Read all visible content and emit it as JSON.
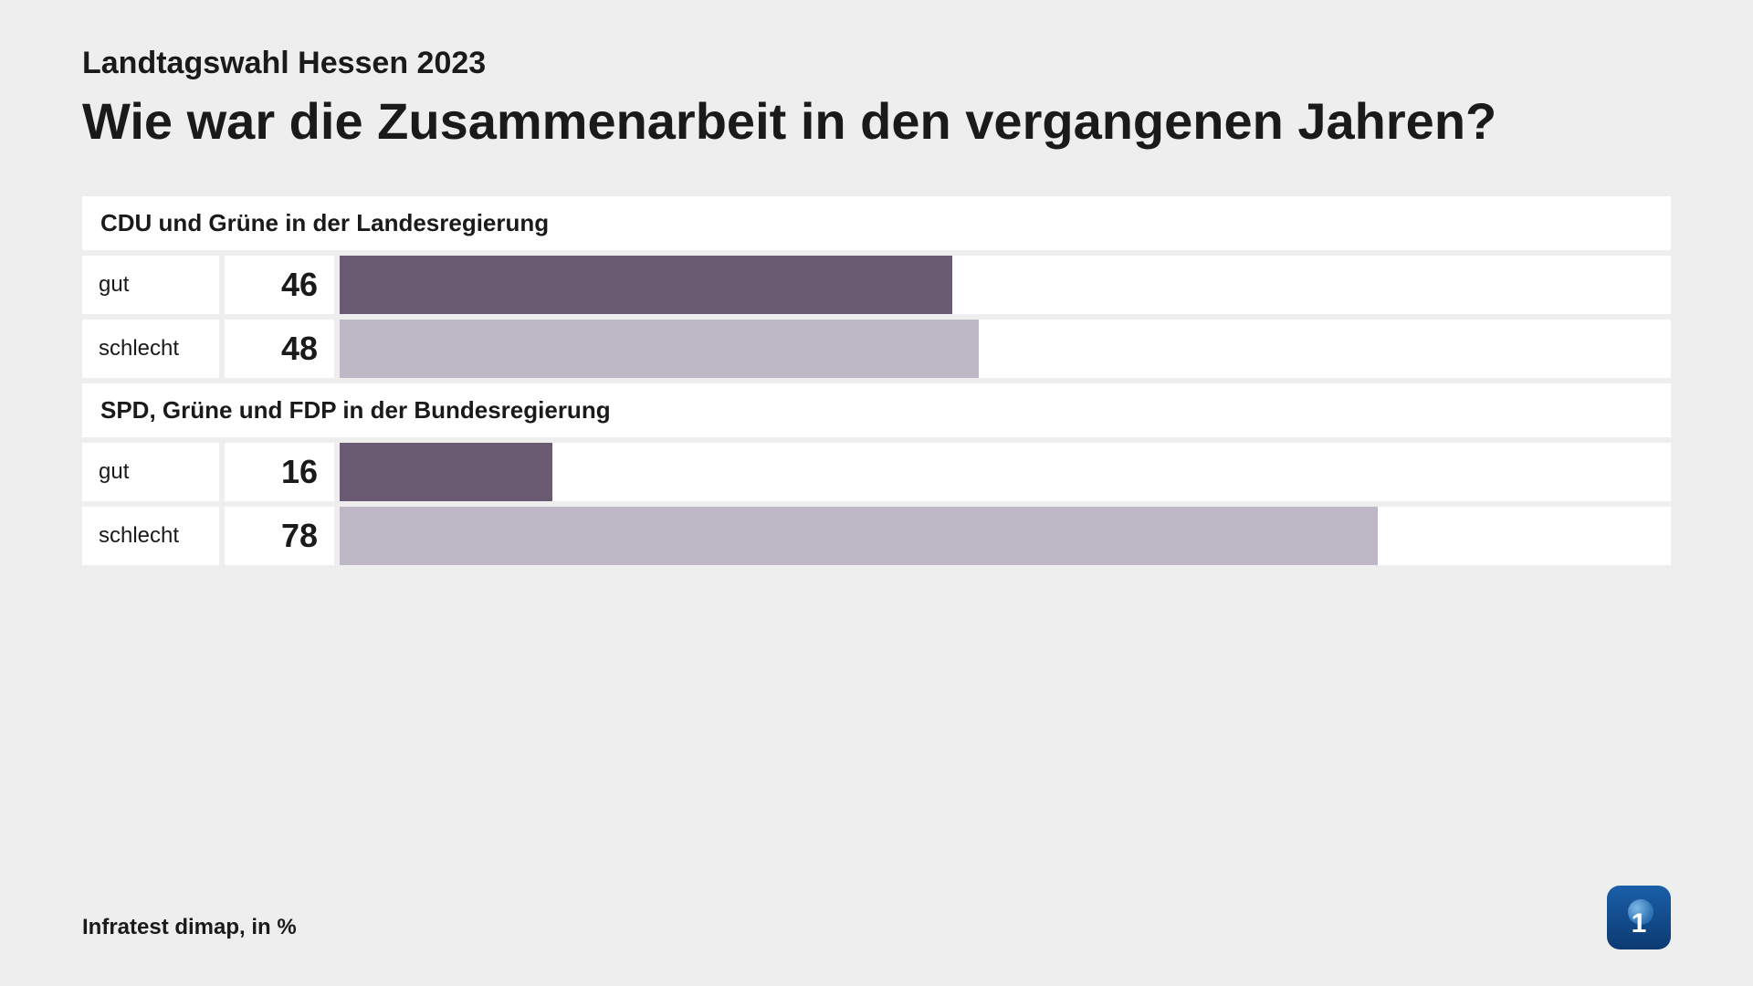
{
  "header": {
    "subtitle": "Landtagswahl Hessen 2023",
    "title": "Wie war die Zusammenarbeit in den vergangenen Jahren?"
  },
  "chart": {
    "type": "bar",
    "bar_max_scale": 100,
    "background_color": "#eeeeee",
    "cell_background": "#ffffff",
    "label_fontsize": 24,
    "value_fontsize": 36,
    "group_header_fontsize": 26,
    "groups": [
      {
        "header": "CDU und Grüne in der Landesregierung",
        "rows": [
          {
            "label": "gut",
            "value": 46,
            "color": "#6a5a72"
          },
          {
            "label": "schlecht",
            "value": 48,
            "color": "#beb7c5"
          }
        ]
      },
      {
        "header": "SPD, Grüne und FDP in der Bundesregierung",
        "rows": [
          {
            "label": "gut",
            "value": 16,
            "color": "#6a5a72"
          },
          {
            "label": "schlecht",
            "value": 78,
            "color": "#beb7c5"
          }
        ]
      }
    ]
  },
  "footer": {
    "source": "Infratest dimap, in %"
  },
  "logo": {
    "text": "1"
  }
}
